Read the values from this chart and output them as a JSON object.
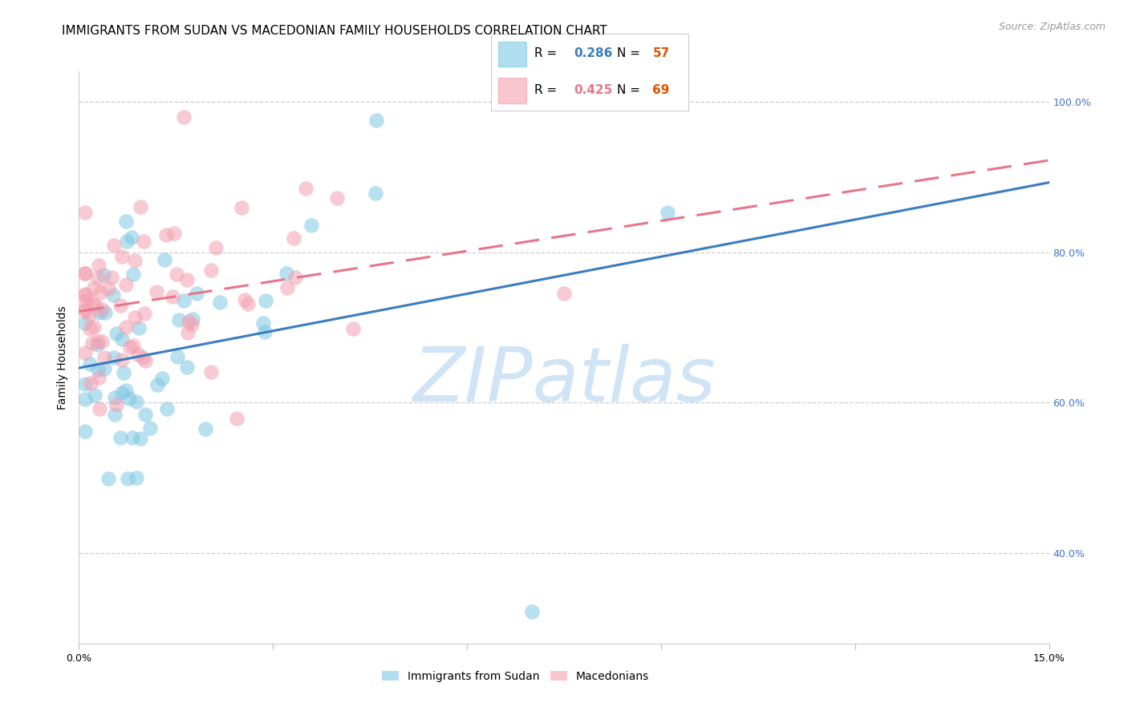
{
  "title": "IMMIGRANTS FROM SUDAN VS MACEDONIAN FAMILY HOUSEHOLDS CORRELATION CHART",
  "source": "Source: ZipAtlas.com",
  "ylabel_label": "Family Households",
  "x_min": 0.0,
  "x_max": 0.15,
  "y_min": 0.28,
  "y_max": 1.04,
  "ytick_positions": [
    0.4,
    0.6,
    0.8,
    1.0
  ],
  "ytick_labels": [
    "40.0%",
    "60.0%",
    "80.0%",
    "100.0%"
  ],
  "xtick_positions": [
    0.0,
    0.03,
    0.06,
    0.09,
    0.12,
    0.15
  ],
  "xtick_labels": [
    "0.0%",
    "",
    "",
    "",
    "",
    "15.0%"
  ],
  "sudan_R": 0.286,
  "sudan_N": 57,
  "macedonian_R": 0.425,
  "macedonian_N": 69,
  "sudan_color": "#7ec8e3",
  "macedonian_color": "#f4a0b0",
  "sudan_line_color": "#3a7dbf",
  "macedonian_line_color": "#e8758a",
  "watermark_text": "ZIPatlas",
  "watermark_color": "#d0e4f5",
  "legend_R_color_sudan": "#3a7dbf",
  "legend_R_color_mac": "#e8758a",
  "legend_N_color": "#e05000",
  "title_fontsize": 11,
  "axis_label_fontsize": 10,
  "tick_fontsize": 9,
  "legend_fontsize": 11,
  "source_fontsize": 9
}
